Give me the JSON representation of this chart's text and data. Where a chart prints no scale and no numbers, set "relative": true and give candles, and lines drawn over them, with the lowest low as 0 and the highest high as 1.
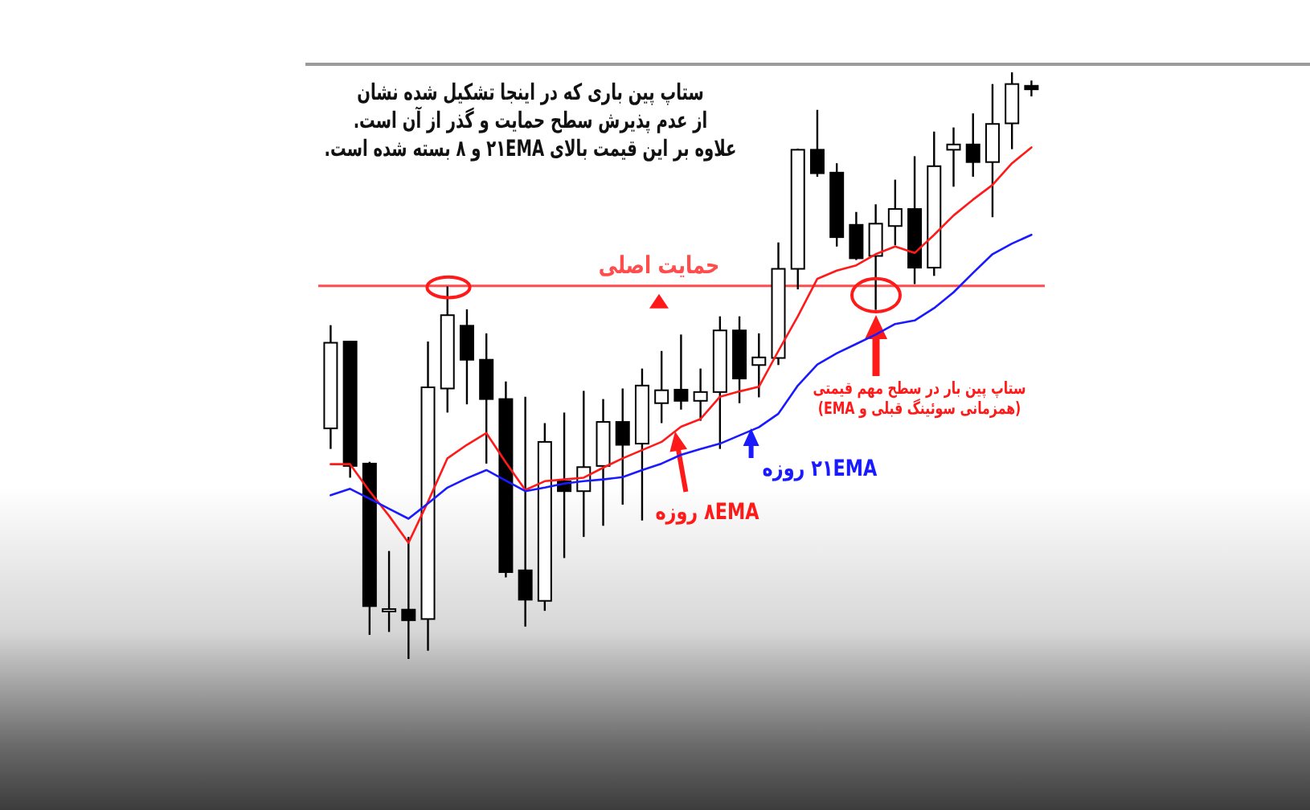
{
  "chart_data": {
    "type": "candlestick",
    "relative": true,
    "tick_labels": false,
    "title": "ستاپ پین باری که در اینجا تشکیل شده نشان\nاز عدم پذیرش سطح حمایت و گذر از آن است.\nعلاوه بر این قیمت بالای ۲۱EMA و ۸ بسته شده است.",
    "categories": [
      null,
      null,
      null,
      null,
      null,
      null,
      null,
      null,
      null,
      null,
      null,
      null,
      null,
      null,
      null,
      null,
      null,
      null,
      null,
      null,
      null,
      null,
      null,
      null,
      null,
      null,
      null,
      null,
      null,
      null,
      null,
      null,
      null,
      null,
      null,
      null,
      null
    ],
    "ohlc": [
      [
        0.393,
        0.569,
        0.358,
        0.539
      ],
      [
        0.541,
        0.542,
        0.309,
        0.329
      ],
      [
        0.333,
        0.336,
        0.041,
        0.09
      ],
      [
        0.084,
        0.184,
        0.046,
        0.085
      ],
      [
        0.084,
        0.208,
        0,
        0.066
      ],
      [
        0.068,
        0.541,
        0.014,
        0.463
      ],
      [
        0.461,
        0.635,
        0.42,
        0.586
      ],
      [
        0.568,
        0.596,
        0.434,
        0.51
      ],
      [
        0.51,
        0.555,
        0.333,
        0.443
      ],
      [
        0.443,
        0.473,
        0.139,
        0.148
      ],
      [
        0.151,
        0.447,
        0.055,
        0.101
      ],
      [
        0.099,
        0.402,
        0.082,
        0.37
      ],
      [
        0.303,
        0.42,
        0.172,
        0.286
      ],
      [
        0.286,
        0.457,
        0.208,
        0.327
      ],
      [
        0.329,
        0.443,
        0.227,
        0.404
      ],
      [
        0.404,
        0.461,
        0.263,
        0.365
      ],
      [
        0.367,
        0.495,
        0.236,
        0.466
      ],
      [
        0.436,
        0.525,
        0.402,
        0.458
      ],
      [
        0.459,
        0.553,
        0.425,
        0.44
      ],
      [
        0.44,
        0.495,
        0.406,
        0.455
      ],
      [
        0.455,
        0.584,
        0.358,
        0.56
      ],
      [
        0.56,
        0.584,
        0.436,
        0.478
      ],
      [
        0.501,
        0.555,
        0.446,
        0.514
      ],
      [
        0.513,
        0.71,
        0.501,
        0.665
      ],
      [
        0.665,
        0.87,
        0.63,
        0.868
      ],
      [
        0.868,
        0.936,
        0.822,
        0.828
      ],
      [
        0.829,
        0.845,
        0.703,
        0.719
      ],
      [
        0.74,
        0.762,
        0.68,
        0.683
      ],
      [
        0.687,
        0.775,
        0.595,
        0.742
      ],
      [
        0.738,
        0.817,
        0.705,
        0.767
      ],
      [
        0.767,
        0.857,
        0.639,
        0.667
      ],
      [
        0.667,
        0.899,
        0.653,
        0.84
      ],
      [
        0.868,
        0.906,
        0.805,
        0.877
      ],
      [
        0.877,
        0.93,
        0.822,
        0.847
      ],
      [
        0.847,
        0.98,
        0.753,
        0.912
      ],
      [
        0.913,
        1,
        0.869,
        0.98
      ],
      [
        0.977,
        0.986,
        0.959,
        0.971
      ]
    ],
    "series": [
      {
        "type": "line",
        "name": "۸EMA روزه",
        "color": "#ff1a1a",
        "values": [
          0.332,
          0.332,
          0.286,
          0.244,
          0.198,
          0.268,
          0.342,
          0.365,
          0.385,
          0.335,
          0.288,
          0.303,
          0.306,
          0.309,
          0.326,
          0.342,
          0.356,
          0.37,
          0.396,
          0.409,
          0.447,
          0.456,
          0.464,
          0.525,
          0.584,
          0.648,
          0.662,
          0.671,
          0.69,
          0.703,
          0.692,
          0.723,
          0.756,
          0.783,
          0.808,
          0.845,
          0.872
        ]
      },
      {
        "type": "line",
        "name": "۲۱EMA روزه",
        "color": "#1a1aff",
        "values": [
          0.279,
          0.29,
          0.273,
          0.256,
          0.239,
          0.265,
          0.292,
          0.308,
          0.322,
          0.304,
          0.286,
          0.292,
          0.299,
          0.303,
          0.306,
          0.31,
          0.322,
          0.333,
          0.348,
          0.358,
          0.367,
          0.381,
          0.395,
          0.418,
          0.466,
          0.502,
          0.521,
          0.537,
          0.553,
          0.571,
          0.577,
          0.598,
          0.625,
          0.658,
          0.69,
          0.708,
          0.723
        ]
      }
    ],
    "ref_lines": [
      {
        "axis": "y",
        "value": 0.636,
        "label": "حمایت اصلی",
        "color": "#ff4d4d"
      }
    ],
    "annotations": [
      "ستاپ پین بار در سطح مهم قیمتی\n(همزمانی سوئینگ قبلی و EMA)"
    ]
  }
}
